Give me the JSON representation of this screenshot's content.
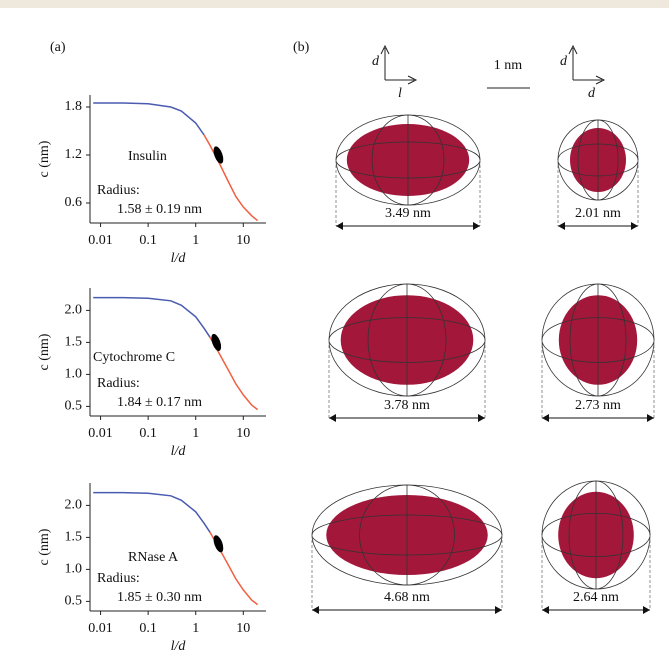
{
  "panel_labels": [
    "(a)",
    "(b)"
  ],
  "chart_data": [
    {
      "type": "line",
      "ylabel": "c (nm)",
      "xlabel": "l/d",
      "xscale": "log",
      "xlim": [
        0.006,
        30
      ],
      "xticks": [
        0.01,
        0.1,
        1,
        10
      ],
      "ylim": [
        0.35,
        1.95
      ],
      "yticks": [
        0.6,
        1.2,
        1.8
      ],
      "series": [
        {
          "color": "#4a5bb0",
          "x": [
            0.007,
            0.01,
            0.03,
            0.1,
            0.3,
            0.5,
            1,
            1.5
          ],
          "values": [
            1.85,
            1.85,
            1.85,
            1.84,
            1.8,
            1.75,
            1.6,
            1.45
          ]
        },
        {
          "color": "#f06040",
          "x": [
            1.5,
            2,
            3,
            5,
            7,
            10,
            15,
            20
          ],
          "values": [
            1.45,
            1.32,
            1.12,
            0.85,
            0.68,
            0.55,
            0.44,
            0.38
          ]
        }
      ],
      "marker": {
        "x": 3,
        "y": 1.2,
        "color": "#000000"
      },
      "name": "Insulin",
      "name_color": "#f06040",
      "radius_label": "Radius:",
      "radius": "1.58 ± 0.19 nm"
    },
    {
      "type": "line",
      "ylabel": "c (nm)",
      "xlabel": "l/d",
      "xscale": "log",
      "xlim": [
        0.006,
        30
      ],
      "xticks": [
        0.01,
        0.1,
        1,
        10
      ],
      "ylim": [
        0.35,
        2.35
      ],
      "yticks": [
        0.5,
        {
          "value": 1,
          "label": "1.0"
        },
        1.5,
        {
          "value": 2,
          "label": "2.0"
        }
      ],
      "series": [
        {
          "color": "#4a5bb0",
          "x": [
            0.007,
            0.01,
            0.03,
            0.1,
            0.3,
            0.5,
            1,
            1.5,
            2
          ],
          "values": [
            2.2,
            2.2,
            2.2,
            2.19,
            2.15,
            2.08,
            1.9,
            1.72,
            1.58
          ]
        },
        {
          "color": "#f06040",
          "x": [
            2,
            3,
            5,
            7,
            10,
            15,
            20
          ],
          "values": [
            1.58,
            1.35,
            1.05,
            0.85,
            0.68,
            0.52,
            0.45
          ]
        }
      ],
      "marker": {
        "x": 2.7,
        "y": 1.5,
        "color": "#000000"
      },
      "name": "Cytochrome C",
      "name_color": "#f06040",
      "radius_label": "Radius:",
      "radius": "1.84 ± 0.17 nm"
    },
    {
      "type": "line",
      "ylabel": "c (nm)",
      "xlabel": "l/d",
      "xscale": "log",
      "xlim": [
        0.006,
        30
      ],
      "xticks": [
        0.01,
        0.1,
        1,
        10
      ],
      "ylim": [
        0.35,
        2.35
      ],
      "yticks": [
        0.5,
        {
          "value": 1,
          "label": "1.0"
        },
        1.5,
        {
          "value": 2,
          "label": "2.0"
        }
      ],
      "series": [
        {
          "color": "#4a5bb0",
          "x": [
            0.007,
            0.01,
            0.03,
            0.1,
            0.3,
            0.5,
            1,
            1.5,
            2
          ],
          "values": [
            2.2,
            2.2,
            2.2,
            2.19,
            2.15,
            2.08,
            1.9,
            1.72,
            1.58
          ]
        },
        {
          "color": "#f06040",
          "x": [
            2,
            3,
            5,
            7,
            10,
            15,
            20
          ],
          "values": [
            1.58,
            1.35,
            1.05,
            0.85,
            0.68,
            0.52,
            0.45
          ]
        }
      ],
      "marker": {
        "x": 3,
        "y": 1.4,
        "color": "#000000"
      },
      "name": "RNase A",
      "name_color": "#f06040",
      "radius_label": "Radius:",
      "radius": "1.85 ± 0.30 nm"
    }
  ],
  "renderings": {
    "axes_left": {
      "vertical": "d",
      "horizontal": "l"
    },
    "axes_right": {
      "vertical": "d",
      "horizontal": "d"
    },
    "scale_bar": "1 nm",
    "rows": [
      {
        "length": "3.49 nm",
        "width": "2.01 nm"
      },
      {
        "length": "3.78 nm",
        "width": "2.73 nm"
      },
      {
        "length": "4.68 nm",
        "width": "2.64 nm"
      }
    ]
  }
}
